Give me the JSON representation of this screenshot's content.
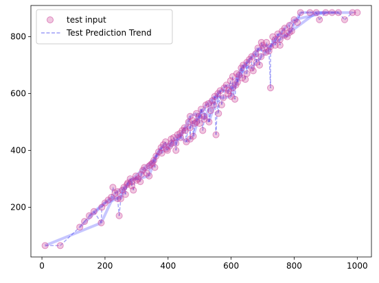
{
  "chart_data": {
    "type": "scatter",
    "title": "",
    "xlabel": "",
    "ylabel": "",
    "xlim": [
      -35,
      1045
    ],
    "ylim": [
      25,
      910
    ],
    "x_ticks": [
      0,
      200,
      400,
      600,
      800,
      1000
    ],
    "y_ticks": [
      200,
      400,
      600,
      800
    ],
    "grid": false,
    "legend": {
      "position": "upper-left"
    },
    "series": [
      {
        "name": "test input",
        "kind": "scatter",
        "marker_face": "#cc4499",
        "marker_edge": "#cc4499",
        "points": [
          [
            10,
            65
          ],
          [
            58,
            65
          ],
          [
            120,
            130
          ],
          [
            135,
            150
          ],
          [
            150,
            170
          ],
          [
            165,
            185
          ],
          [
            188,
            145
          ],
          [
            190,
            200
          ],
          [
            200,
            215
          ],
          [
            210,
            225
          ],
          [
            220,
            235
          ],
          [
            225,
            270
          ],
          [
            232,
            250
          ],
          [
            240,
            255
          ],
          [
            245,
            170
          ],
          [
            250,
            230
          ],
          [
            260,
            270
          ],
          [
            265,
            245
          ],
          [
            272,
            285
          ],
          [
            280,
            300
          ],
          [
            285,
            275
          ],
          [
            290,
            260
          ],
          [
            298,
            310
          ],
          [
            305,
            300
          ],
          [
            312,
            290
          ],
          [
            320,
            330
          ],
          [
            325,
            340
          ],
          [
            332,
            320
          ],
          [
            340,
            310
          ],
          [
            345,
            350
          ],
          [
            350,
            355
          ],
          [
            358,
            340
          ],
          [
            362,
            380
          ],
          [
            370,
            395
          ],
          [
            378,
            410
          ],
          [
            385,
            420
          ],
          [
            392,
            430
          ],
          [
            398,
            400
          ],
          [
            405,
            415
          ],
          [
            410,
            440
          ],
          [
            418,
            445
          ],
          [
            425,
            425
          ],
          [
            430,
            455
          ],
          [
            438,
            460
          ],
          [
            445,
            470
          ],
          [
            452,
            480
          ],
          [
            458,
            430
          ],
          [
            465,
            500
          ],
          [
            470,
            520
          ],
          [
            478,
            505
          ],
          [
            485,
            495
          ],
          [
            490,
            530
          ],
          [
            498,
            520
          ],
          [
            505,
            545
          ],
          [
            510,
            470
          ],
          [
            515,
            510
          ],
          [
            520,
            560
          ],
          [
            528,
            565
          ],
          [
            535,
            540
          ],
          [
            540,
            575
          ],
          [
            548,
            590
          ],
          [
            552,
            455
          ],
          [
            558,
            600
          ],
          [
            565,
            610
          ],
          [
            570,
            560
          ],
          [
            578,
            620
          ],
          [
            585,
            630
          ],
          [
            592,
            610
          ],
          [
            598,
            645
          ],
          [
            605,
            660
          ],
          [
            612,
            580
          ],
          [
            618,
            670
          ],
          [
            625,
            665
          ],
          [
            632,
            690
          ],
          [
            638,
            700
          ],
          [
            645,
            650
          ],
          [
            650,
            710
          ],
          [
            658,
            720
          ],
          [
            665,
            730
          ],
          [
            670,
            680
          ],
          [
            678,
            740
          ],
          [
            685,
            760
          ],
          [
            690,
            700
          ],
          [
            696,
            780
          ],
          [
            700,
            770
          ],
          [
            705,
            760
          ],
          [
            712,
            780
          ],
          [
            720,
            750
          ],
          [
            725,
            620
          ],
          [
            732,
            800
          ],
          [
            740,
            790
          ],
          [
            748,
            810
          ],
          [
            755,
            770
          ],
          [
            762,
            820
          ],
          [
            770,
            830
          ],
          [
            778,
            800
          ],
          [
            785,
            840
          ],
          [
            792,
            820
          ],
          [
            800,
            860
          ],
          [
            810,
            850
          ],
          [
            820,
            885
          ],
          [
            850,
            885
          ],
          [
            870,
            885
          ],
          [
            880,
            860
          ],
          [
            900,
            885
          ],
          [
            920,
            885
          ],
          [
            940,
            885
          ],
          [
            960,
            860
          ],
          [
            985,
            885
          ],
          [
            1000,
            885
          ],
          [
            440,
            445
          ],
          [
            455,
            470
          ],
          [
            470,
            440
          ],
          [
            480,
            450
          ],
          [
            500,
            495
          ],
          [
            515,
            520
          ],
          [
            530,
            500
          ],
          [
            545,
            560
          ],
          [
            560,
            530
          ],
          [
            575,
            585
          ],
          [
            590,
            600
          ],
          [
            605,
            620
          ],
          [
            620,
            640
          ],
          [
            635,
            655
          ],
          [
            650,
            670
          ],
          [
            665,
            690
          ],
          [
            380,
            390
          ],
          [
            395,
            405
          ],
          [
            410,
            425
          ],
          [
            425,
            400
          ],
          [
            340,
            345
          ],
          [
            355,
            365
          ],
          [
            300,
            295
          ],
          [
            315,
            315
          ],
          [
            270,
            280
          ],
          [
            285,
            290
          ],
          [
            240,
            230
          ],
          [
            255,
            260
          ],
          [
            600,
            590
          ],
          [
            615,
            630
          ],
          [
            680,
            710
          ],
          [
            695,
            730
          ],
          [
            710,
            745
          ],
          [
            725,
            765
          ],
          [
            740,
            770
          ],
          [
            755,
            790
          ],
          [
            770,
            805
          ],
          [
            785,
            815
          ],
          [
            470,
            480
          ],
          [
            490,
            500
          ]
        ]
      },
      {
        "name": "Test Prediction Trend",
        "kind": "line",
        "color": "#2222ee",
        "dash": "dashed"
      }
    ]
  }
}
